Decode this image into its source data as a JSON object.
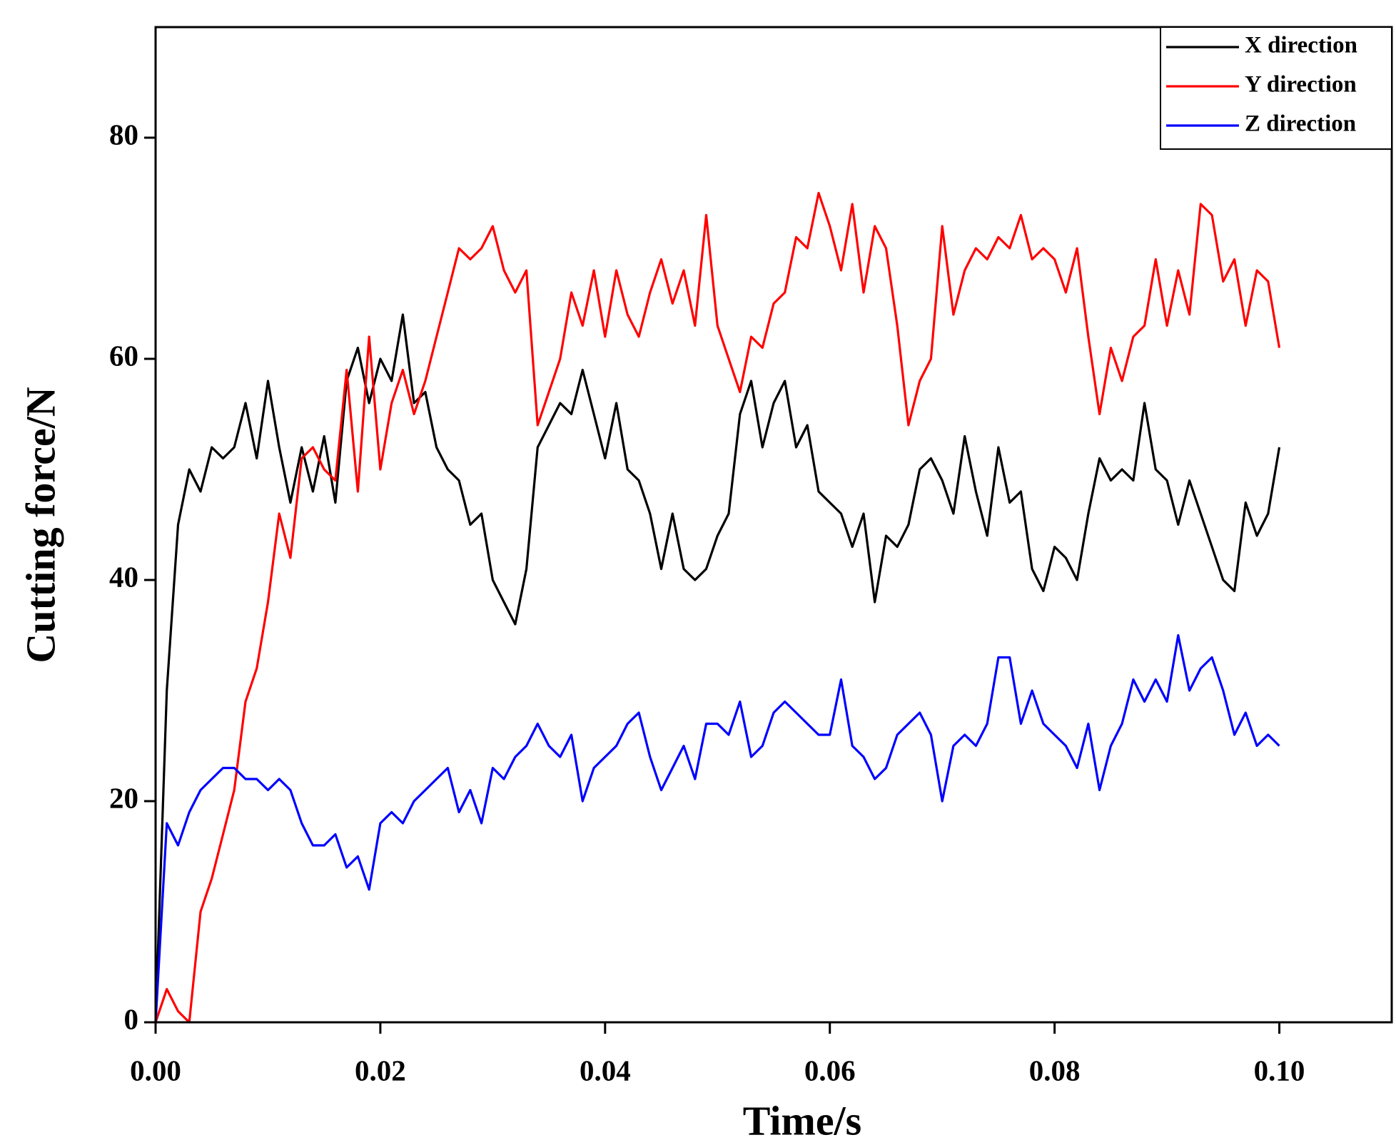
{
  "chart_data": {
    "type": "line",
    "xlabel": "Time/s",
    "ylabel": "Cutting force/N",
    "x": [
      0,
      0.001,
      0.002,
      0.003,
      0.004,
      0.005,
      0.006,
      0.007,
      0.008,
      0.009,
      0.01,
      0.011,
      0.012,
      0.013,
      0.014,
      0.015,
      0.016,
      0.017,
      0.018,
      0.019,
      0.02,
      0.021,
      0.022,
      0.023,
      0.024,
      0.025,
      0.026,
      0.027,
      0.028,
      0.029,
      0.03,
      0.031,
      0.032,
      0.033,
      0.034,
      0.035,
      0.036,
      0.037,
      0.038,
      0.039,
      0.04,
      0.041,
      0.042,
      0.043,
      0.044,
      0.045,
      0.046,
      0.047,
      0.048,
      0.049,
      0.05,
      0.051,
      0.052,
      0.053,
      0.054,
      0.055,
      0.056,
      0.057,
      0.058,
      0.059,
      0.06,
      0.061,
      0.062,
      0.063,
      0.064,
      0.065,
      0.066,
      0.067,
      0.068,
      0.069,
      0.07,
      0.071,
      0.072,
      0.073,
      0.074,
      0.075,
      0.076,
      0.077,
      0.078,
      0.079,
      0.08,
      0.081,
      0.082,
      0.083,
      0.084,
      0.085,
      0.086,
      0.087,
      0.088,
      0.089,
      0.09,
      0.091,
      0.092,
      0.093,
      0.094,
      0.095,
      0.096,
      0.097,
      0.098,
      0.099,
      0.1
    ],
    "series": [
      {
        "name": "X direction",
        "color": "#000000",
        "values": [
          0,
          30,
          45,
          50,
          48,
          52,
          51,
          52,
          56,
          51,
          58,
          52,
          47,
          52,
          48,
          53,
          47,
          58,
          61,
          56,
          60,
          58,
          64,
          56,
          57,
          52,
          50,
          49,
          45,
          46,
          40,
          38,
          36,
          41,
          52,
          54,
          56,
          55,
          59,
          55,
          51,
          56,
          50,
          49,
          46,
          41,
          46,
          41,
          40,
          41,
          44,
          46,
          55,
          58,
          52,
          56,
          58,
          52,
          54,
          48,
          47,
          46,
          43,
          46,
          38,
          44,
          43,
          45,
          50,
          51,
          49,
          46,
          53,
          48,
          44,
          52,
          47,
          48,
          41,
          39,
          43,
          42,
          40,
          46,
          51,
          49,
          50,
          49,
          56,
          50,
          49,
          45,
          49,
          46,
          43,
          40,
          39,
          47,
          44,
          46,
          52
        ]
      },
      {
        "name": "Y direction",
        "color": "#ff0000",
        "values": [
          0,
          3,
          1,
          0,
          10,
          13,
          17,
          21,
          29,
          32,
          38,
          46,
          42,
          51,
          52,
          50,
          49,
          59,
          48,
          62,
          50,
          56,
          59,
          55,
          58,
          62,
          66,
          70,
          69,
          70,
          72,
          68,
          66,
          68,
          54,
          57,
          60,
          66,
          63,
          68,
          62,
          68,
          64,
          62,
          66,
          69,
          65,
          68,
          63,
          73,
          63,
          60,
          57,
          62,
          61,
          65,
          66,
          71,
          70,
          75,
          72,
          68,
          74,
          66,
          72,
          70,
          63,
          54,
          58,
          60,
          72,
          64,
          68,
          70,
          69,
          71,
          70,
          73,
          69,
          70,
          69,
          66,
          70,
          62,
          55,
          61,
          58,
          62,
          63,
          69,
          63,
          68,
          64,
          74,
          73,
          67,
          69,
          63,
          68,
          67,
          61
        ]
      },
      {
        "name": "Z direction",
        "color": "#0000ff",
        "values": [
          0,
          18,
          16,
          19,
          21,
          22,
          23,
          23,
          22,
          22,
          21,
          22,
          21,
          18,
          16,
          16,
          17,
          14,
          15,
          12,
          18,
          19,
          18,
          20,
          21,
          22,
          23,
          19,
          21,
          18,
          23,
          22,
          24,
          25,
          27,
          25,
          24,
          26,
          20,
          23,
          24,
          25,
          27,
          28,
          24,
          21,
          23,
          25,
          22,
          27,
          27,
          26,
          29,
          24,
          25,
          28,
          29,
          28,
          27,
          26,
          26,
          31,
          25,
          24,
          22,
          23,
          26,
          27,
          28,
          26,
          20,
          25,
          26,
          25,
          27,
          33,
          33,
          27,
          30,
          27,
          26,
          25,
          23,
          27,
          21,
          25,
          27,
          31,
          29,
          31,
          29,
          35,
          30,
          32,
          33,
          30,
          26,
          28,
          25,
          26,
          25
        ]
      }
    ],
    "xlim": [
      0,
      0.11
    ],
    "ylim": [
      0,
      90
    ],
    "xticks": [
      {
        "value": 0,
        "label": "0.00"
      },
      {
        "value": 0.02,
        "label": "0.02"
      },
      {
        "value": 0.04,
        "label": "0.04"
      },
      {
        "value": 0.06,
        "label": "0.06"
      },
      {
        "value": 0.08,
        "label": "0.08"
      },
      {
        "value": 0.1,
        "label": "0.10"
      }
    ],
    "yticks": [
      0,
      20,
      40,
      60,
      80
    ],
    "legend": "upper right"
  }
}
